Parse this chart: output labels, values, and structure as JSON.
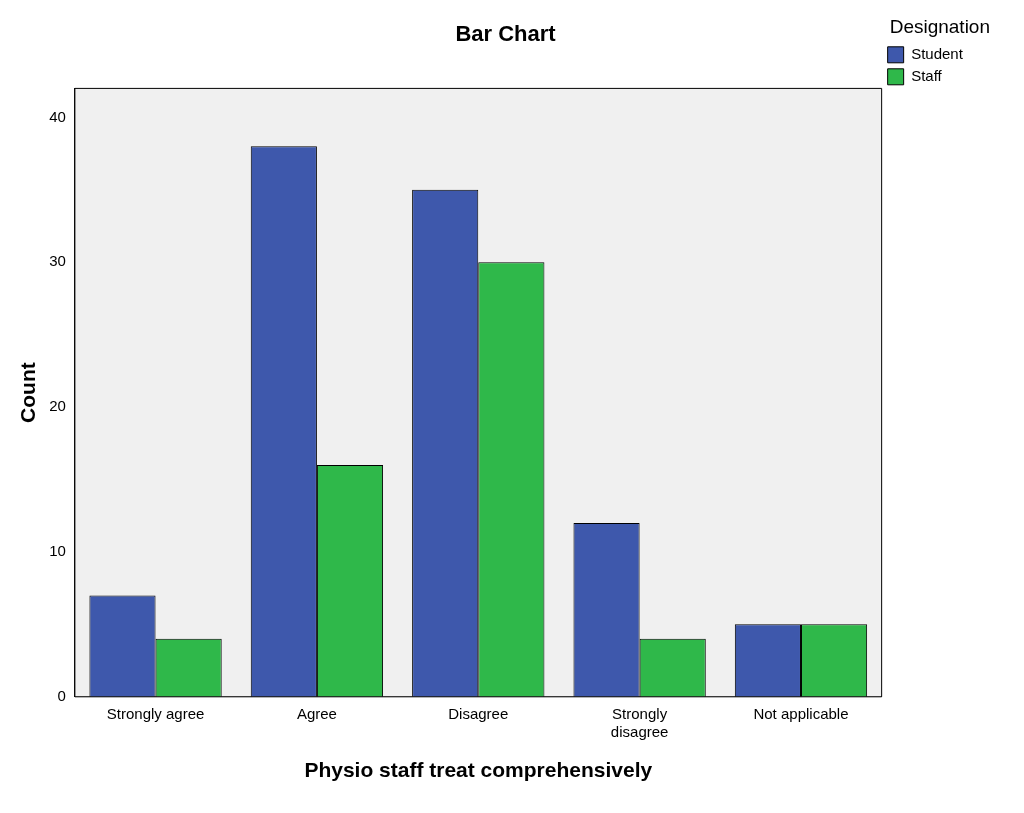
{
  "chart_data": {
    "type": "bar",
    "title": "Bar Chart",
    "xlabel": "Physio staff treat comprehensively",
    "ylabel": "Count",
    "legend_title": "Designation",
    "categories": [
      "Strongly agree",
      "Agree",
      "Disagree",
      "Strongly disagree",
      "Not applicable"
    ],
    "series": [
      {
        "name": "Student",
        "color": "#3e58ac",
        "values": [
          7,
          38,
          35,
          12,
          5
        ]
      },
      {
        "name": "Staff",
        "color": "#2fb84a",
        "values": [
          4,
          16,
          30,
          4,
          5
        ]
      }
    ],
    "ylim": [
      0,
      42
    ],
    "yticks": [
      0,
      10,
      20,
      30,
      40
    ],
    "grid": false,
    "legend": "top right"
  }
}
